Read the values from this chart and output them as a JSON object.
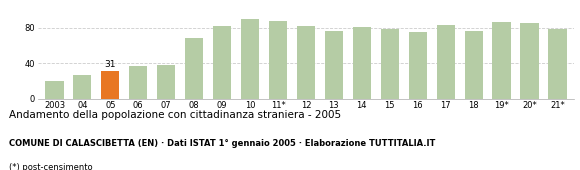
{
  "categories": [
    "2003",
    "04",
    "05",
    "06",
    "07",
    "08",
    "09",
    "10",
    "11*",
    "12",
    "13",
    "14",
    "15",
    "16",
    "17",
    "18",
    "19*",
    "20*",
    "21*"
  ],
  "values": [
    20,
    27,
    31,
    37,
    38,
    68,
    82,
    90,
    88,
    82,
    76,
    81,
    79,
    75,
    83,
    76,
    87,
    86,
    79
  ],
  "highlight_index": 2,
  "bar_color_normal": "#b5cca5",
  "bar_color_highlight": "#e87722",
  "highlight_label": "31",
  "title": "Andamento della popolazione con cittadinanza straniera - 2005",
  "subtitle": "COMUNE DI CALASCIBETTA (EN) · Dati ISTAT 1° gennaio 2005 · Elaborazione TUTTITALIA.IT",
  "footnote": "(*) post-censimento",
  "ylim": [
    0,
    100
  ],
  "yticks": [
    0,
    40,
    80
  ],
  "grid_color": "#cccccc",
  "background_color": "#ffffff",
  "title_fontsize": 7.5,
  "subtitle_fontsize": 6.0,
  "footnote_fontsize": 6.0,
  "tick_fontsize": 6.0,
  "bar_label_fontsize": 6.5
}
